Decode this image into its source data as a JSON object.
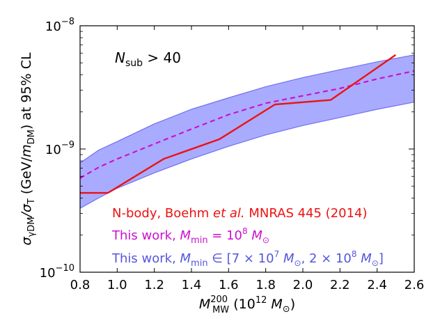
{
  "chart_data": {
    "type": "line",
    "xlabel": {
      "base": "M",
      "sub": "MW",
      "sup": "200",
      "tail": " (10",
      "tail_sup": "12",
      "unit_base": " M",
      "unit_sub": "⊙",
      "close": ")"
    },
    "ylabel": {
      "prefix": "σ",
      "num_sub": "γDM",
      "slash": "/σ",
      "den_sub": "T",
      "paren_open": " (GeV/",
      "m": "m",
      "m_sub": "DM",
      "paren_close": ")",
      "suffix": " at 95% CL"
    },
    "xlim": [
      0.8,
      2.6
    ],
    "ylim_log10": [
      -10,
      -8
    ],
    "x_ticks": [
      0.8,
      1.0,
      1.2,
      1.4,
      1.6,
      1.8,
      2.0,
      2.2,
      2.4,
      2.6
    ],
    "x_tick_labels": [
      "0.8",
      "1.0",
      "1.2",
      "1.4",
      "1.6",
      "1.8",
      "2.0",
      "2.2",
      "2.4",
      "2.6"
    ],
    "y_ticks": [
      {
        "exp": -8,
        "base": "10",
        "sup": "−8"
      },
      {
        "exp": -9,
        "base": "10",
        "sup": "−9"
      },
      {
        "exp": -10,
        "base": "10",
        "sup": "−10"
      }
    ],
    "annotation": {
      "N": "N",
      "sub": "sub",
      "text": " > 40"
    },
    "series": [
      {
        "name": "nbody",
        "style": "solid",
        "color": "#ee1111",
        "x": [
          0.8,
          0.95,
          1.25,
          1.55,
          1.85,
          2.15,
          2.5
        ],
        "y": [
          4.4e-10,
          4.4e-10,
          8.3e-10,
          1.2e-09,
          2.3e-09,
          2.5e-09,
          5.8e-09
        ]
      },
      {
        "name": "this_work_median",
        "style": "dashed",
        "color": "#cc11cc",
        "x": [
          0.8,
          0.9,
          1.0,
          1.2,
          1.4,
          1.6,
          1.8,
          2.0,
          2.2,
          2.4,
          2.6
        ],
        "y": [
          5.8e-10,
          7.1e-10,
          8.3e-10,
          1.1e-09,
          1.45e-09,
          1.9e-09,
          2.35e-09,
          2.7e-09,
          3.1e-09,
          3.7e-09,
          4.3e-09
        ]
      },
      {
        "name": "this_work_band",
        "style": "band",
        "color": "#8888ff",
        "x": [
          0.8,
          0.9,
          1.0,
          1.2,
          1.4,
          1.6,
          1.8,
          2.0,
          2.2,
          2.4,
          2.6
        ],
        "y_low": [
          3.3e-10,
          4e-10,
          4.8e-10,
          6.4e-10,
          8.3e-10,
          1.05e-09,
          1.3e-09,
          1.55e-09,
          1.8e-09,
          2.1e-09,
          2.4e-09
        ],
        "y_high": [
          7.7e-10,
          9.8e-10,
          1.15e-09,
          1.6e-09,
          2.1e-09,
          2.6e-09,
          3.2e-09,
          3.8e-09,
          4.4e-09,
          5.1e-09,
          5.8e-09
        ]
      }
    ],
    "legend": [
      {
        "series": "nbody",
        "color": "#ee1111",
        "pre": "N-body, Boehm ",
        "it": "et al.",
        "post": " MNRAS 445 (2014)"
      },
      {
        "series": "this_work_median",
        "color": "#cc11cc",
        "pre": "This work, ",
        "M": "M",
        "sub": "min",
        "eq": " = 10",
        "sup": "8",
        "unit": " M",
        "unit_sub": "⊙"
      },
      {
        "series": "this_work_band",
        "color": "#5555dd",
        "pre": "This work, ",
        "M": "M",
        "sub": "min",
        "range_a": " ∈ [7 × 10",
        "sup_a": "7",
        "unit_a": " M",
        "unit_sub_a": "⊙",
        "range_b": ", 2 × 10",
        "sup_b": "8",
        "unit_b": " M",
        "unit_sub_b": "⊙",
        "close": "]"
      }
    ]
  }
}
